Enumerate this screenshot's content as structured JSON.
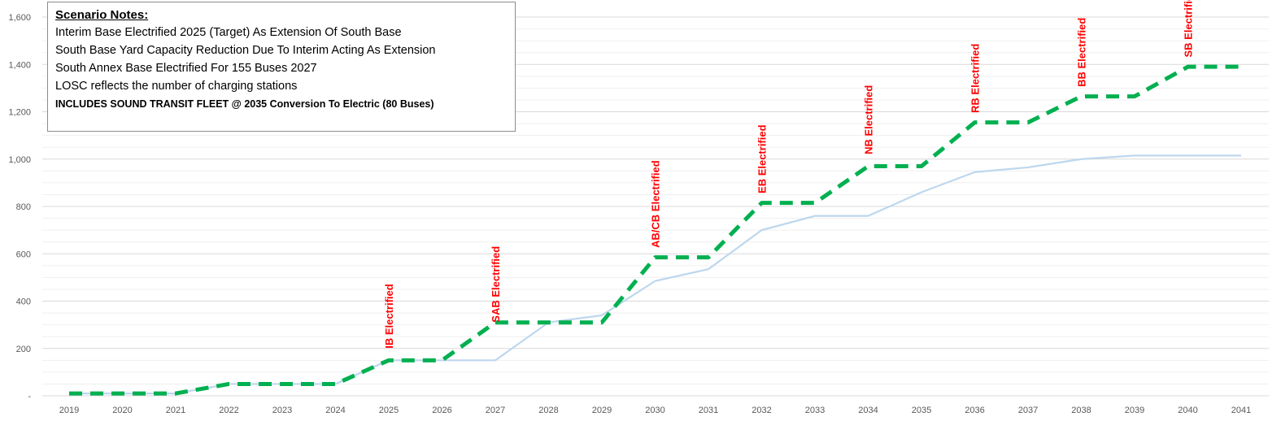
{
  "chart_data": {
    "type": "line",
    "categories": [
      "2019",
      "2020",
      "2021",
      "2022",
      "2023",
      "2024",
      "2025",
      "2026",
      "2027",
      "2028",
      "2029",
      "2030",
      "2031",
      "2032",
      "2033",
      "2034",
      "2035",
      "2036",
      "2037",
      "2038",
      "2039",
      "2040",
      "2041"
    ],
    "series": [
      {
        "color": "#00b050",
        "style": "dashed",
        "values": [
          10,
          10,
          10,
          50,
          50,
          50,
          150,
          150,
          310,
          310,
          310,
          585,
          585,
          815,
          815,
          970,
          970,
          1155,
          1155,
          1265,
          1265,
          1390,
          1390
        ]
      },
      {
        "color": "#bdd7ee",
        "style": "solid",
        "values": [
          10,
          10,
          10,
          50,
          50,
          50,
          150,
          150,
          150,
          310,
          340,
          485,
          535,
          700,
          760,
          760,
          860,
          945,
          965,
          1000,
          1015,
          1015,
          1015
        ]
      }
    ],
    "y_ticks": [
      {
        "value": 0,
        "label": "-"
      },
      {
        "value": 200,
        "label": "200"
      },
      {
        "value": 400,
        "label": "400"
      },
      {
        "value": 600,
        "label": "600"
      },
      {
        "value": 800,
        "label": "800"
      },
      {
        "value": 1000,
        "label": "1,000"
      },
      {
        "value": 1200,
        "label": "1,200"
      },
      {
        "value": 1400,
        "label": "1,400"
      },
      {
        "value": 1600,
        "label": "1,600"
      }
    ],
    "ylim": [
      0,
      1600
    ],
    "grid": true,
    "annotations": [
      {
        "x": "2025",
        "y": 200,
        "text": "IB Electrified"
      },
      {
        "x": "2027",
        "y": 310,
        "text": "SAB Electrified"
      },
      {
        "x": "2030",
        "y": 625,
        "text": "AB/CB Electrified"
      },
      {
        "x": "2032",
        "y": 855,
        "text": "EB Electrified"
      },
      {
        "x": "2034",
        "y": 1020,
        "text": "NB Electrified"
      },
      {
        "x": "2036",
        "y": 1195,
        "text": "RB Electrified"
      },
      {
        "x": "2038",
        "y": 1305,
        "text": "BB Electrified"
      },
      {
        "x": "2040",
        "y": 1430,
        "text": "SB Electrified"
      }
    ]
  },
  "notes": {
    "title": "Scenario Notes:",
    "lines": [
      "Interim Base Electrified 2025 (Target) As Extension Of South Base",
      "South Base Yard Capacity Reduction Due To Interim Acting As Extension",
      "South Annex Base Electrified For 155 Buses 2027",
      "LOSC reflects the number of charging stations"
    ],
    "bold_line": "INCLUDES SOUND TRANSIT FLEET @ 2035 Conversion To Electric (80 Buses)"
  }
}
